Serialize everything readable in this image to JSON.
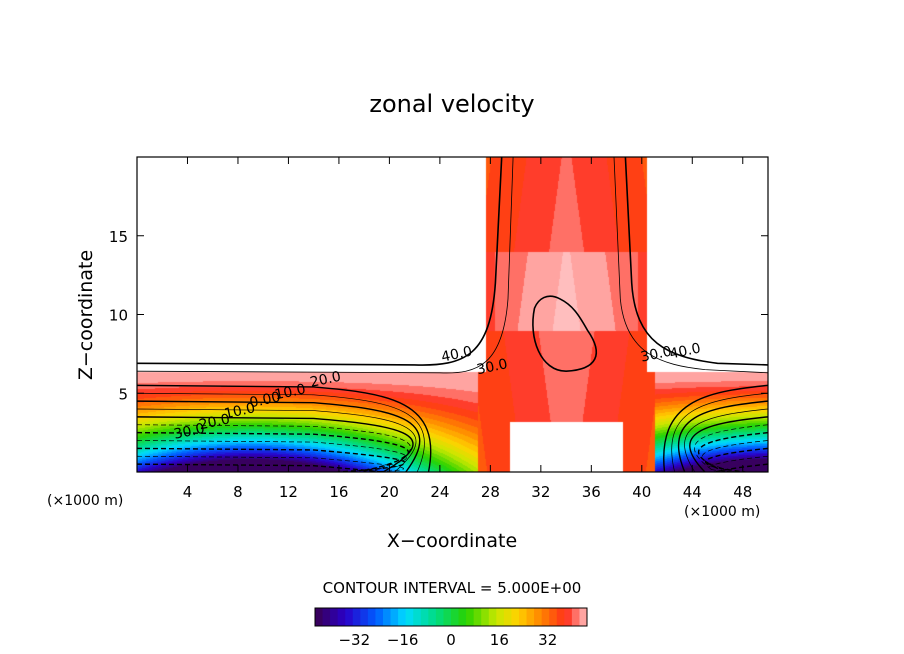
{
  "chart_data": {
    "type": "heatmap",
    "title": "zonal velocity",
    "xlabel": "X−coordinate",
    "ylabel": "Z−coordinate",
    "x_unit_left": "(×1000 m)",
    "x_unit_right": "(×1000 m)",
    "xlim": [
      0,
      50
    ],
    "ylim": [
      0,
      20
    ],
    "x_ticks": [
      4,
      8,
      12,
      16,
      20,
      24,
      28,
      32,
      36,
      40,
      44,
      48
    ],
    "y_ticks": [
      5,
      10,
      15
    ],
    "contour_interval_text": "CONTOUR INTERVAL = 5.000E+00",
    "contour_interval": 5,
    "contour_labels": [
      {
        "text": "40.0",
        "x": 24.2,
        "z": 7.0
      },
      {
        "text": "30.0",
        "x": 27.0,
        "z": 6.2
      },
      {
        "text": "20.0",
        "x": 13.8,
        "z": 5.4
      },
      {
        "text": "10.0",
        "x": 11.0,
        "z": 4.6
      },
      {
        "text": "0.00",
        "x": 9.0,
        "z": 4.1
      },
      {
        "text": "10.0",
        "x": 7.0,
        "z": 3.4
      },
      {
        "text": "20.0",
        "x": 5.0,
        "z": 2.7
      },
      {
        "text": "30.0",
        "x": 3.0,
        "z": 2.1
      },
      {
        "text": "40.0",
        "x": 42.3,
        "z": 7.2
      },
      {
        "text": "30.0",
        "x": 40.0,
        "z": 7.0
      }
    ],
    "colorbar": {
      "ticks": [
        "−32",
        "−16",
        "0",
        "16",
        "32"
      ],
      "tick_values": [
        -32,
        -16,
        0,
        16,
        32
      ],
      "range": [
        -45,
        45
      ]
    },
    "grid": false,
    "legend": "colorbar-bottom"
  }
}
